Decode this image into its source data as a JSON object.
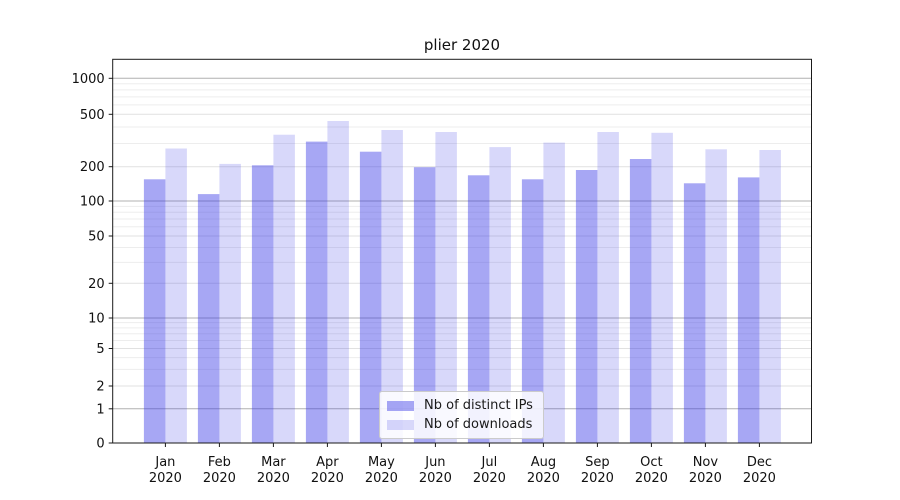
{
  "chart_data": {
    "type": "bar",
    "title": "plier 2020",
    "categories": [
      "Jan 2020",
      "Feb 2020",
      "Mar 2020",
      "Apr 2020",
      "May 2020",
      "Jun 2020",
      "Jul 2020",
      "Aug 2020",
      "Sep 2020",
      "Oct 2020",
      "Nov 2020",
      "Dec 2020"
    ],
    "series": [
      {
        "name": "Nb of distinct IPs",
        "color": "#3c3ce6",
        "fill_opacity": 0.45,
        "values": [
          155,
          115,
          205,
          310,
          260,
          198,
          168,
          155,
          187,
          229,
          143,
          161
        ]
      },
      {
        "name": "Nb of downloads",
        "color": "#3c3ce6",
        "fill_opacity": 0.2,
        "values": [
          275,
          210,
          350,
          445,
          380,
          367,
          282,
          305,
          367,
          362,
          271,
          268
        ]
      }
    ],
    "yticks": [
      0,
      1,
      2,
      5,
      10,
      20,
      50,
      100,
      200,
      500,
      1000
    ],
    "yscale": "symlog",
    "ylim": [
      0,
      1400
    ],
    "grid": true,
    "legend_position": "lower-center",
    "xlabel": "",
    "ylabel": ""
  }
}
